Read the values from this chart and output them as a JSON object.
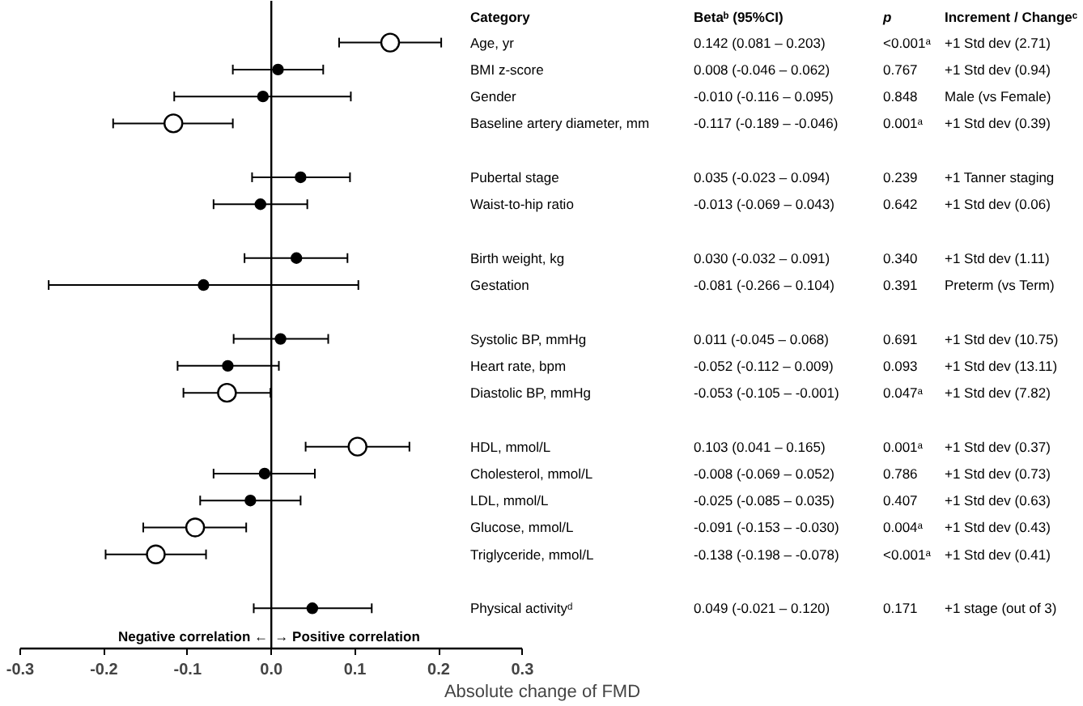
{
  "chart_data": {
    "type": "scatter",
    "xlabel": "Absolute change of FMD",
    "categories": [
      "Age, yr",
      "BMI z-score",
      "Gender",
      "Baseline artery diameter, mm",
      null,
      "Pubertal stage",
      "Waist-to-hip ratio",
      null,
      "Birth weight, kg",
      "Gestation",
      null,
      "Systolic BP, mmHg",
      "Heart rate, bpm",
      "Diastolic BP, mmHg",
      null,
      "HDL, mmol/L",
      "Cholesterol, mmol/L",
      "LDL, mmol/L",
      "Glucose, mmol/L",
      "Triglyceride, mmol/L",
      null,
      "Physical activityᵈ"
    ],
    "orientation": "horizontal",
    "series": [
      {
        "color": "#000000",
        "values": [
          null,
          0.008,
          -0.01,
          null,
          null,
          0.035,
          -0.013,
          null,
          0.03,
          -0.081,
          null,
          0.011,
          -0.052,
          null,
          null,
          null,
          -0.008,
          -0.025,
          null,
          null,
          null,
          0.049
        ],
        "errors": [
          null,
          [
            -0.046,
            0.062
          ],
          [
            -0.116,
            0.095
          ],
          null,
          null,
          [
            -0.023,
            0.094
          ],
          [
            -0.069,
            0.043
          ],
          null,
          [
            -0.032,
            0.091
          ],
          [
            -0.266,
            0.104
          ],
          null,
          [
            -0.045,
            0.068
          ],
          [
            -0.112,
            0.009
          ],
          null,
          null,
          null,
          [
            -0.069,
            0.052
          ],
          [
            -0.085,
            0.035
          ],
          null,
          null,
          null,
          [
            -0.021,
            0.12
          ]
        ]
      },
      {
        "color": "#ffffff",
        "values": [
          0.142,
          null,
          null,
          -0.117,
          null,
          null,
          null,
          null,
          null,
          null,
          null,
          null,
          null,
          -0.053,
          null,
          0.103,
          null,
          null,
          -0.091,
          -0.138,
          null,
          null
        ],
        "errors": [
          [
            0.081,
            0.203
          ],
          null,
          null,
          [
            -0.189,
            -0.046
          ],
          null,
          null,
          null,
          null,
          null,
          null,
          null,
          null,
          null,
          [
            -0.105,
            -0.001
          ],
          null,
          [
            0.041,
            0.165
          ],
          null,
          null,
          [
            -0.153,
            -0.03
          ],
          [
            -0.198,
            -0.078
          ],
          null,
          null
        ]
      }
    ],
    "xlim": [
      -0.3,
      0.3
    ],
    "xticks": [
      -0.3,
      -0.2,
      -0.1,
      {
        "value": 0,
        "label": "0.0"
      },
      0.1,
      0.2,
      0.3
    ],
    "marker": "circle",
    "ref_lines": [
      {
        "axis": "x",
        "value": 0
      }
    ],
    "annotations": [
      "Category",
      "Betaᵇ (95%CI)",
      "p",
      "Increment / Changeᶜ",
      "0.142 (0.081 – 0.203)",
      "0.008 (-0.046 – 0.062)",
      "-0.010 (-0.116 – 0.095)",
      "-0.117 (-0.189 – -0.046)",
      "0.035 (-0.023 – 0.094)",
      "-0.013 (-0.069 – 0.043)",
      "0.030 (-0.032 – 0.091)",
      "-0.081 (-0.266 – 0.104)",
      "0.011 (-0.045 – 0.068)",
      "-0.052 (-0.112 – 0.009)",
      "-0.053 (-0.105 – -0.001)",
      "0.103 (0.041 – 0.165)",
      "-0.008 (-0.069 – 0.052)",
      "-0.025 (-0.085 – 0.035)",
      "-0.091 (-0.153 – -0.030)",
      "-0.138 (-0.198 – -0.078)",
      "0.049 (-0.021 – 0.120)",
      "<0.001ᵃ",
      "0.767",
      "0.848",
      "0.001ᵃ",
      "0.239",
      "0.642",
      "0.340",
      "0.391",
      "0.691",
      "0.093",
      "0.047ᵃ",
      "0.001ᵃ",
      "0.786",
      "0.407",
      "0.004ᵃ",
      "<0.001ᵃ",
      "0.171",
      "+1 Std dev (2.71)",
      "+1 Std dev (0.94)",
      "Male (vs Female)",
      "+1 Std dev (0.39)",
      "+1 Tanner staging",
      "+1 Std dev (0.06)",
      "+1 Std dev (1.11)",
      "Preterm (vs Term)",
      "+1 Std dev (10.75)",
      "+1 Std dev (13.11)",
      "+1 Std dev (7.82)",
      "+1 Std dev (0.37)",
      "+1 Std dev (0.73)",
      "+1 Std dev (0.63)",
      "+1 Std dev (0.43)",
      "+1 Std dev (0.41)",
      "+1 stage (out of 3)",
      "Negative correlation ←",
      "→ Positive correlation"
    ],
    "grid": false
  }
}
